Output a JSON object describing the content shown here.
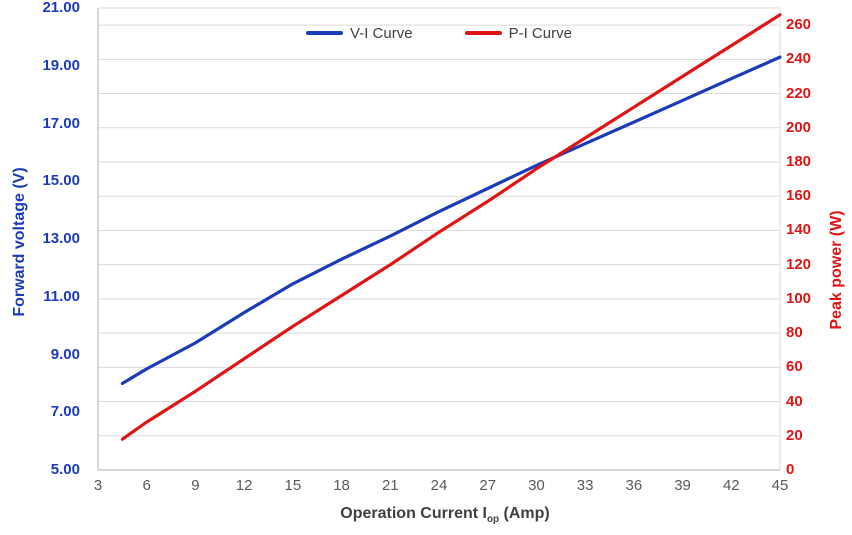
{
  "chart_data": {
    "type": "line",
    "title": "",
    "xlabel_parts": {
      "pre": "Operation Current I",
      "sub": "op",
      "post": " (Amp)"
    },
    "ylabel_left": "Forward voltage (V)",
    "ylabel_right": "Peak power (W)",
    "xlim": [
      3,
      45
    ],
    "x_ticks": [
      3,
      6,
      9,
      12,
      15,
      18,
      21,
      24,
      27,
      30,
      33,
      36,
      39,
      42,
      45
    ],
    "ylim_left": [
      5,
      21
    ],
    "left_tick_labels": [
      "5.00",
      "7.00",
      "9.00",
      "11.00",
      "13.00",
      "15.00",
      "17.00",
      "19.00",
      "21.00"
    ],
    "ylim_right": [
      0,
      270
    ],
    "right_ticks": [
      0,
      20,
      40,
      60,
      80,
      100,
      120,
      140,
      160,
      180,
      200,
      220,
      240,
      260
    ],
    "grid": "horizontal gridlines every 20 W, light gray",
    "legend_position": "top-center",
    "series": [
      {
        "name": "V-I Curve",
        "axis": "left",
        "color": "#1b3bb8",
        "x": [
          4.5,
          6,
          9,
          12,
          15,
          18,
          21,
          24,
          27,
          30,
          33,
          36,
          39,
          42,
          45
        ],
        "y": [
          8.0,
          8.5,
          9.4,
          10.45,
          11.45,
          12.3,
          13.1,
          13.95,
          14.75,
          15.55,
          16.3,
          17.05,
          17.8,
          18.55,
          19.3
        ]
      },
      {
        "name": "P-I Curve",
        "axis": "right",
        "color": "#e01414",
        "x": [
          4.5,
          6,
          9,
          12,
          15,
          18,
          21,
          24,
          27,
          30,
          33,
          36,
          39,
          42,
          45
        ],
        "y": [
          18,
          28,
          46,
          65,
          84,
          102,
          120,
          139,
          157,
          176,
          194,
          212,
          230,
          248,
          266
        ]
      }
    ]
  },
  "colors": {
    "left_axis_text": "#1b3bb8",
    "right_axis_text": "#e01414",
    "x_axis_text": "#595959",
    "gridline": "#d9d9d9",
    "axis_line": "#bfbfbf",
    "background": "#ffffff"
  }
}
